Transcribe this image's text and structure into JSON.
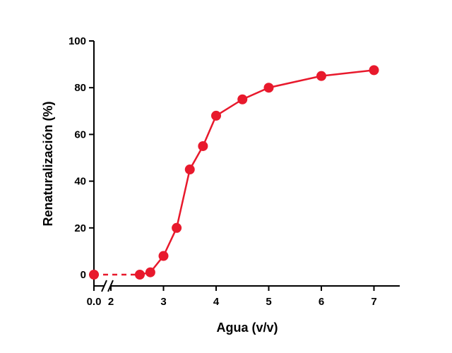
{
  "chart_data": {
    "type": "line",
    "xlabel": "Agua (v/v)",
    "ylabel": "Renaturalización (%)",
    "ylim": [
      0,
      100
    ],
    "y_ticks": [
      "0",
      "20",
      "40",
      "60",
      "80",
      "100"
    ],
    "x_break_between": [
      0.0,
      2
    ],
    "x_ticks": [
      "0.0",
      "2",
      "3",
      "4",
      "5",
      "6",
      "7"
    ],
    "grid": false,
    "legend": "none",
    "series": [
      {
        "color": "#e8192c",
        "points": [
          {
            "x": 0.0,
            "y": 0
          },
          {
            "x": 2.55,
            "y": 0
          },
          {
            "x": 2.75,
            "y": 1
          },
          {
            "x": 3.0,
            "y": 8
          },
          {
            "x": 3.25,
            "y": 20
          },
          {
            "x": 3.5,
            "y": 45
          },
          {
            "x": 3.75,
            "y": 55
          },
          {
            "x": 4.0,
            "y": 68
          },
          {
            "x": 4.5,
            "y": 75
          },
          {
            "x": 5.0,
            "y": 80
          },
          {
            "x": 6.0,
            "y": 85
          },
          {
            "x": 7.0,
            "y": 87.5
          }
        ]
      }
    ]
  }
}
